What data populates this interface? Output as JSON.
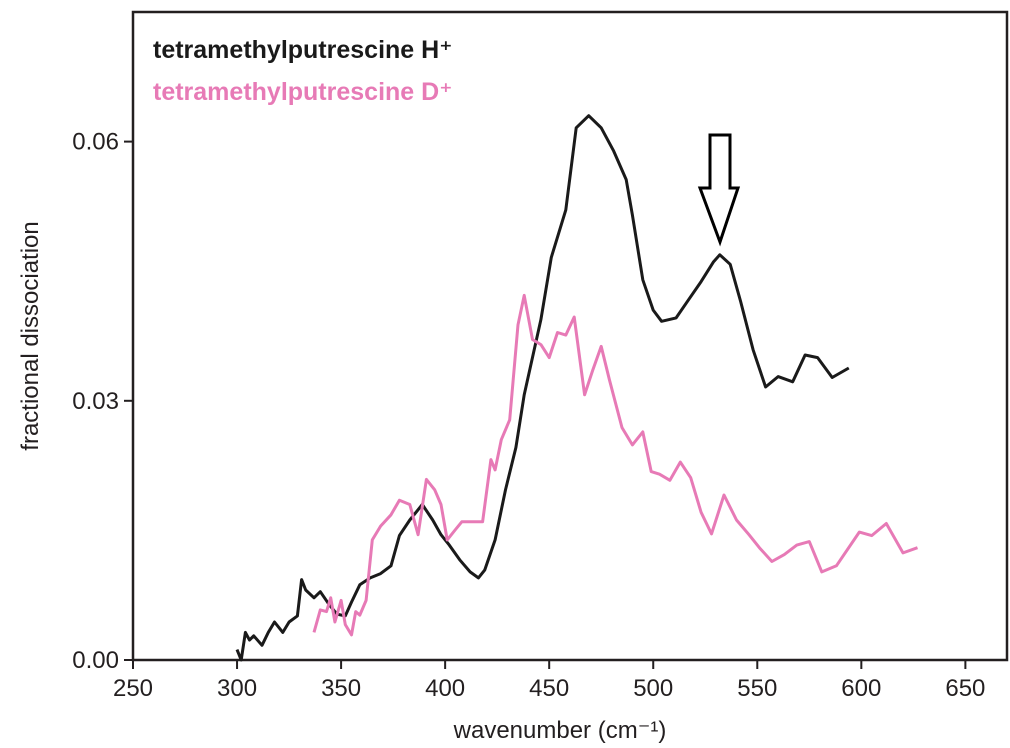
{
  "chart_data": {
    "type": "line",
    "xlabel": "wavenumber (cm⁻¹)",
    "ylabel": "fractional dissociation",
    "xlim": [
      250,
      670
    ],
    "ylim": [
      0,
      0.075
    ],
    "xticks": [
      250,
      300,
      350,
      400,
      450,
      500,
      550,
      600,
      650
    ],
    "yticks": [
      {
        "value": 0,
        "label": "0.00"
      },
      {
        "value": 0.03,
        "label": "0.03"
      },
      {
        "value": 0.06,
        "label": "0.06"
      }
    ],
    "legend": "upper left",
    "series": [
      {
        "name": "tetramethylputrescine H⁺",
        "color": "#1a1a1a",
        "x": [
          300,
          302,
          304,
          306,
          308,
          312,
          315,
          318,
          322,
          325,
          329,
          331,
          333,
          337,
          340,
          344,
          348,
          352,
          355,
          359,
          364,
          369,
          374,
          378,
          383,
          389,
          394,
          398,
          402,
          407,
          412,
          416,
          419,
          424,
          429,
          434,
          438,
          446,
          451,
          458,
          463,
          469,
          475,
          481,
          487,
          490,
          495,
          500,
          504,
          511,
          517,
          523,
          529,
          532,
          537,
          542,
          548,
          554,
          560,
          567,
          573,
          579,
          586,
          594
        ],
        "values": [
          0.0012,
          0,
          0.0032,
          0.0023,
          0.0028,
          0.0017,
          0.0032,
          0.0044,
          0.0032,
          0.0044,
          0.0051,
          0.0093,
          0.0081,
          0.0072,
          0.0079,
          0.0065,
          0.0053,
          0.0051,
          0.0067,
          0.0087,
          0.0095,
          0.01,
          0.0109,
          0.0144,
          0.0162,
          0.018,
          0.0162,
          0.0145,
          0.0133,
          0.0116,
          0.0102,
          0.0095,
          0.0104,
          0.0139,
          0.0197,
          0.0246,
          0.0307,
          0.0394,
          0.0466,
          0.0521,
          0.0616,
          0.063,
          0.0616,
          0.0589,
          0.0556,
          0.0515,
          0.044,
          0.0405,
          0.0392,
          0.0396,
          0.0417,
          0.0438,
          0.0461,
          0.0469,
          0.0458,
          0.0415,
          0.0359,
          0.0316,
          0.0328,
          0.0322,
          0.0353,
          0.035,
          0.0327,
          0.0338
        ]
      },
      {
        "name": "tetramethylputrescine D⁺",
        "color": "#e77ab6",
        "x": [
          337,
          340,
          343,
          345,
          347,
          350,
          352,
          355,
          357,
          359,
          362,
          365,
          369,
          374,
          378,
          383,
          387,
          391,
          395,
          398,
          401,
          405,
          408,
          418,
          422,
          424,
          427,
          431,
          435,
          438,
          442,
          446,
          450,
          454,
          458,
          462,
          467,
          471,
          475,
          479,
          485,
          490,
          495,
          499,
          503,
          508,
          513,
          518,
          523,
          528,
          534,
          540,
          546,
          551,
          557,
          563,
          569,
          575,
          581,
          588,
          599,
          605,
          612,
          620,
          627
        ],
        "values": [
          0.0032,
          0.0058,
          0.0056,
          0.0072,
          0.0044,
          0.0069,
          0.0041,
          0.0029,
          0.0056,
          0.0052,
          0.0069,
          0.0139,
          0.0155,
          0.0168,
          0.0185,
          0.018,
          0.0145,
          0.0209,
          0.0197,
          0.018,
          0.0139,
          0.0151,
          0.016,
          0.016,
          0.0232,
          0.022,
          0.0255,
          0.0278,
          0.0388,
          0.0422,
          0.0371,
          0.0365,
          0.035,
          0.0379,
          0.0376,
          0.0397,
          0.0307,
          0.0336,
          0.0363,
          0.0324,
          0.0269,
          0.0249,
          0.0264,
          0.0218,
          0.0215,
          0.0208,
          0.0229,
          0.0211,
          0.0171,
          0.0146,
          0.0191,
          0.0162,
          0.0145,
          0.013,
          0.0114,
          0.0122,
          0.0133,
          0.0137,
          0.0102,
          0.0109,
          0.0148,
          0.0144,
          0.0158,
          0.0124,
          0.013
        ]
      }
    ]
  }
}
